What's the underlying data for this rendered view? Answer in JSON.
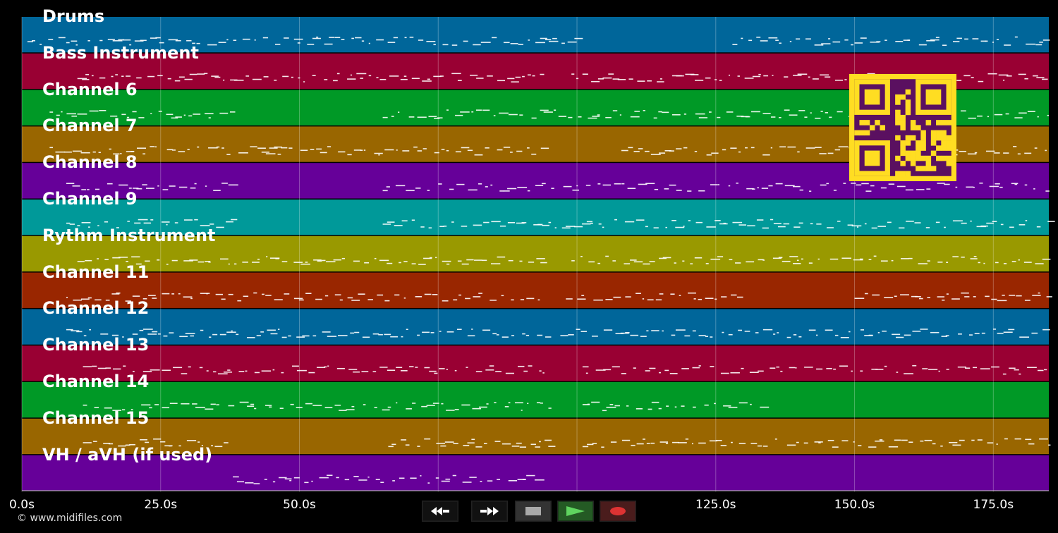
{
  "app": {
    "copyright": "© www.midifiles.com"
  },
  "colors": {
    "background": "#000000",
    "tracks": [
      "#00669a",
      "#990033",
      "#009926",
      "#996600",
      "#660099",
      "#009999",
      "#999900",
      "#992600",
      "#00669a",
      "#990033",
      "#009926",
      "#996600",
      "#660099"
    ],
    "notes": "#ffffff",
    "qr_fg": "#ffdd22",
    "qr_bg": "#5a1060",
    "play_green": "#5fd45f",
    "record_red": "#dd3333"
  },
  "tracks": [
    {
      "label": "Drums"
    },
    {
      "label": "Bass Instrument"
    },
    {
      "label": "Channel 6"
    },
    {
      "label": "Channel 7"
    },
    {
      "label": "Channel 8"
    },
    {
      "label": "Channel 9"
    },
    {
      "label": "Rythm Instrument"
    },
    {
      "label": "Channel 11"
    },
    {
      "label": "Channel 12"
    },
    {
      "label": "Channel 13"
    },
    {
      "label": "Channel 14"
    },
    {
      "label": "Channel 15"
    },
    {
      "label": "VH / aVH (if used)"
    }
  ],
  "timeline": {
    "unit": "s",
    "max_seconds": 185,
    "ticks": [
      {
        "value": 0,
        "label": "0.0s"
      },
      {
        "value": 25,
        "label": "25.0s"
      },
      {
        "value": 50,
        "label": "50.0s"
      },
      {
        "value": 75,
        "label": ""
      },
      {
        "value": 100,
        "label": ""
      },
      {
        "value": 125,
        "label": "125.0s"
      },
      {
        "value": 150,
        "label": "150.0s"
      },
      {
        "value": 175,
        "label": "175.0s"
      }
    ]
  },
  "transport": {
    "buttons": [
      {
        "name": "rewind-button",
        "icon": "rewind-icon"
      },
      {
        "name": "fast-forward-button",
        "icon": "fast-forward-icon"
      },
      {
        "name": "stop-button",
        "icon": "stop-icon"
      },
      {
        "name": "play-button",
        "icon": "play-icon"
      },
      {
        "name": "record-button",
        "icon": "record-icon"
      }
    ]
  },
  "qr": {
    "icon": "qr-code-icon"
  }
}
